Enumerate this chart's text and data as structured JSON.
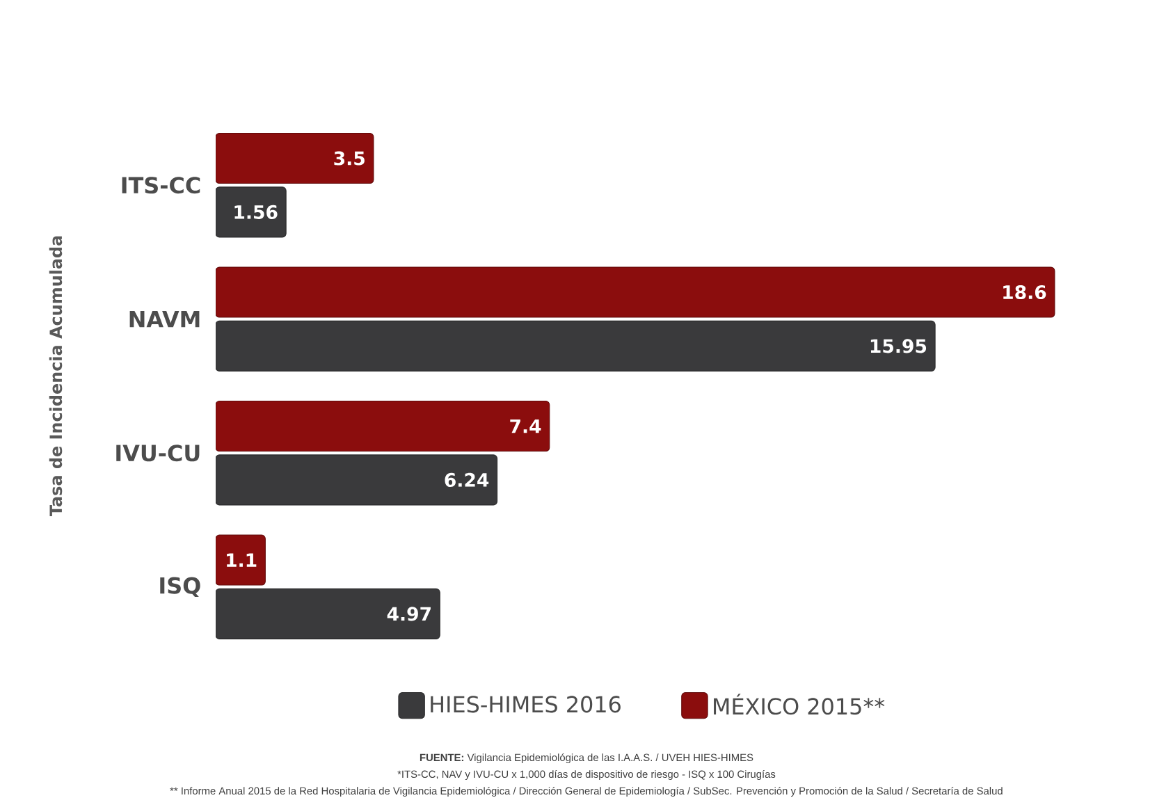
{
  "chart_data": {
    "type": "bar",
    "orientation": "horizontal",
    "ylabel": "Tasa de Incidencia Acumulada",
    "categories": [
      "ITS-CC",
      "NAVM",
      "IVU-CU",
      "ISQ"
    ],
    "series": [
      {
        "name": "HIES-HIMES 2016",
        "color": "#3a3a3c",
        "values": [
          1.56,
          15.95,
          6.24,
          4.97
        ]
      },
      {
        "name": "MÉXICO 2015**",
        "color": "#8b0d0d",
        "values": [
          3.5,
          18.6,
          7.4,
          1.1
        ]
      }
    ],
    "data_labels": true,
    "legend": "bottom",
    "annotations": [
      "**FUENTE:** Vigilancia Epidemiológica de las I.A.A.S. / UVEH HIES-HIMES",
      "*ITS-CC, NAV y IVU-CU x 1,000 días de dispositivo de riesgo - ISQ x 100 Cirugías",
      "** Informe Anual 2015 de la Red Hospitalaria de Vigilancia Epidemiológica / Dirección General de Epidemiología / SubSec. Prevención y Promoción de la Salud / Secretaría de Salud"
    ]
  }
}
